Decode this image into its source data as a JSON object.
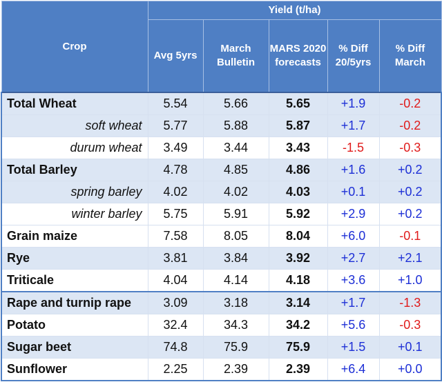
{
  "header": {
    "crop": "Crop",
    "yield_group": "Yield (t/ha)",
    "avg5": "Avg 5yrs",
    "march_bulletin": "March Bulletin",
    "mars": "MARS 2020 forecasts",
    "diff_20_5": "% Diff 20/5yrs",
    "diff_march": "% Diff March"
  },
  "rows": [
    {
      "crop": "Total Wheat",
      "avg5": "5.54",
      "march": "5.66",
      "mars": "5.65",
      "d205": "+1.9",
      "dmarch": "-0.2"
    },
    {
      "crop": "soft wheat",
      "avg5": "5.77",
      "march": "5.88",
      "mars": "5.87",
      "d205": "+1.7",
      "dmarch": "-0.2"
    },
    {
      "crop": "durum wheat",
      "avg5": "3.49",
      "march": "3.44",
      "mars": "3.43",
      "d205": "-1.5",
      "dmarch": "-0.3"
    },
    {
      "crop": "Total Barley",
      "avg5": "4.78",
      "march": "4.85",
      "mars": "4.86",
      "d205": "+1.6",
      "dmarch": "+0.2"
    },
    {
      "crop": "spring barley",
      "avg5": "4.02",
      "march": "4.02",
      "mars": "4.03",
      "d205": "+0.1",
      "dmarch": "+0.2"
    },
    {
      "crop": "winter barley",
      "avg5": "5.75",
      "march": "5.91",
      "mars": "5.92",
      "d205": "+2.9",
      "dmarch": "+0.2"
    },
    {
      "crop": "Grain maize",
      "avg5": "7.58",
      "march": "8.05",
      "mars": "8.04",
      "d205": "+6.0",
      "dmarch": "-0.1"
    },
    {
      "crop": "Rye",
      "avg5": "3.81",
      "march": "3.84",
      "mars": "3.92",
      "d205": "+2.7",
      "dmarch": "+2.1"
    },
    {
      "crop": "Triticale",
      "avg5": "4.04",
      "march": "4.14",
      "mars": "4.18",
      "d205": "+3.6",
      "dmarch": "+1.0"
    },
    {
      "crop": "Rape and turnip rape",
      "avg5": "3.09",
      "march": "3.18",
      "mars": "3.14",
      "d205": "+1.7",
      "dmarch": "-1.3"
    },
    {
      "crop": "Potato",
      "avg5": "32.4",
      "march": "34.3",
      "mars": "34.2",
      "d205": "+5.6",
      "dmarch": "-0.3"
    },
    {
      "crop": "Sugar beet",
      "avg5": "74.8",
      "march": "75.9",
      "mars": "75.9",
      "d205": "+1.5",
      "dmarch": "+0.1"
    },
    {
      "crop": "Sunflower",
      "avg5": "2.25",
      "march": "2.39",
      "mars": "2.39",
      "d205": "+6.4",
      "dmarch": "+0.0"
    }
  ],
  "colors": {
    "header_bg": "#4f7fc4",
    "alt_row_bg": "#dce6f4",
    "positive": "#1d2fd6",
    "negative": "#e01b1b"
  }
}
